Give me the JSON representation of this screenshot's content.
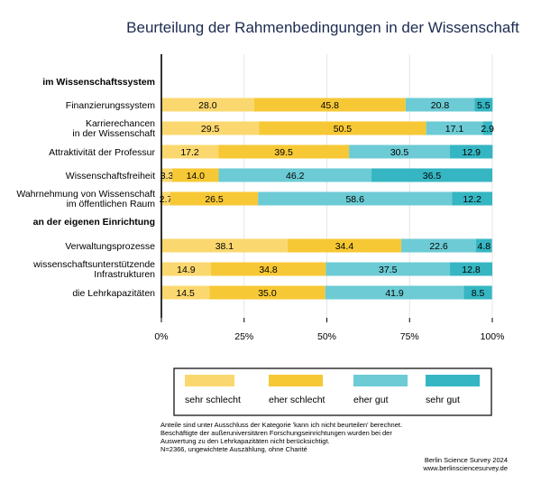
{
  "chart_data": {
    "type": "bar",
    "orientation": "horizontal",
    "stacked": true,
    "title": "Beurteilung der Rahmenbedingungen in der Wissenschaft",
    "xlim": [
      0,
      100
    ],
    "x_ticks": [
      "0%",
      "25%",
      "50%",
      "75%",
      "100%"
    ],
    "grid": true,
    "legend_position": "bottom",
    "series": [
      {
        "name": "sehr schlecht",
        "color": "#fbd86f"
      },
      {
        "name": "eher schlecht",
        "color": "#f7c835"
      },
      {
        "name": "eher gut",
        "color": "#6ccbd4"
      },
      {
        "name": "sehr gut",
        "color": "#35b6c2"
      }
    ],
    "groups": [
      {
        "label": "im Wissenschaftssystem",
        "rows": [
          {
            "label": [
              "Finanzierungssystem"
            ],
            "values": [
              28.0,
              45.8,
              20.8,
              5.5
            ],
            "labels": [
              "28.0",
              "45.8",
              "20.8",
              "5.5"
            ]
          },
          {
            "label": [
              "Karrierechancen",
              "in der Wissenschaft"
            ],
            "values": [
              29.5,
              50.5,
              17.1,
              2.9
            ],
            "labels": [
              "29.5",
              "50.5",
              "17.1",
              "2.9"
            ]
          },
          {
            "label": [
              "Attraktivität der Professur"
            ],
            "values": [
              17.2,
              39.5,
              30.5,
              12.9
            ],
            "labels": [
              "17.2",
              "39.5",
              "30.5",
              "12.9"
            ]
          },
          {
            "label": [
              "Wissenschaftsfreiheit"
            ],
            "values": [
              3.3,
              14.0,
              46.2,
              36.5
            ],
            "labels": [
              "3.3",
              "14.0",
              "46.2",
              "36.5"
            ]
          },
          {
            "label": [
              "Wahrnehmung von Wissenschaft",
              "im öffentlichen Raum"
            ],
            "values": [
              2.7,
              26.5,
              58.6,
              12.2
            ],
            "labels": [
              "2.7",
              "26.5",
              "58.6",
              "12.2"
            ]
          }
        ]
      },
      {
        "label": "an der eigenen Einrichtung",
        "rows": [
          {
            "label": [
              "Verwaltungsprozesse"
            ],
            "values": [
              38.1,
              34.4,
              22.6,
              4.8
            ],
            "labels": [
              "38.1",
              "34.4",
              "22.6",
              "4.8"
            ]
          },
          {
            "label": [
              "wissenschaftsunterstützende",
              "Infrastrukturen"
            ],
            "values": [
              14.9,
              34.8,
              37.5,
              12.8
            ],
            "labels": [
              "14.9",
              "34.8",
              "37.5",
              "12.8"
            ]
          },
          {
            "label": [
              "die Lehrkapazitäten"
            ],
            "values": [
              14.5,
              35.0,
              41.9,
              8.5
            ],
            "labels": [
              "14.5",
              "35.0",
              "41.9",
              "8.5"
            ]
          }
        ]
      }
    ],
    "notes": [
      "Anteile sind unter Ausschluss der Kategorie 'kann ich nicht beurteilen' berechnet.",
      "Beschäftigte der außeruniversitären Forschungseinrichtungen wurden bei der",
      "Auswertung zu den Lehrkapazitäten nicht berücksichtigt.",
      "N=2366, ungewichtete Auszählung, ohne Charité"
    ],
    "source": [
      "Berlin Science Survey 2024",
      "www.berlinsciencesurvey.de"
    ]
  }
}
